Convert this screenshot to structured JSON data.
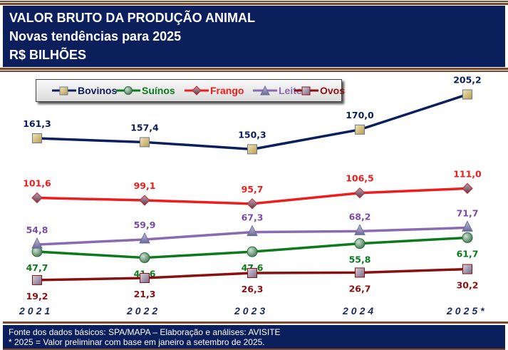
{
  "header": {
    "title": "VALOR BRUTO DA PRODUÇÃO ANIMAL",
    "subtitle": "Novas tendências para 2025",
    "unit": "R$ BILHÕES"
  },
  "footer": {
    "source": "Fonte dos dados básicos: SPA/MAPA – Elaboração e análises: AVISITE",
    "note": "* 2025 = Valor preliminar com base em janeiro a setembro de 2025."
  },
  "chart_data": {
    "type": "line",
    "title": "VALOR BRUTO DA PRODUÇÃO ANIMAL",
    "subtitle": "Novas tendências para 2025",
    "ylabel": "R$ BILHÕES",
    "xlabel": "",
    "categories": [
      "2021",
      "2022",
      "2023",
      "2024",
      "2025*"
    ],
    "ylim": [
      0,
      215
    ],
    "grid": false,
    "legend_position": "top-left",
    "series": [
      {
        "name": "Bovinos",
        "color": "#0b1f5c",
        "marker": "square",
        "marker_fill": "#d8c48a",
        "label_pos": "above",
        "labels": [
          "161,3",
          "157,4",
          "150,3",
          "170,0",
          "205,2"
        ],
        "values": [
          161.3,
          157.4,
          150.3,
          170.0,
          205.2
        ]
      },
      {
        "name": "Suínos",
        "color": "#0a7a1a",
        "marker": "circle",
        "marker_fill": "#7aa58a",
        "label_pos": "below",
        "labels": [
          "47,7",
          "41,6",
          "47,6",
          "55,8",
          "61,7"
        ],
        "values": [
          47.7,
          41.6,
          47.6,
          55.8,
          61.7
        ]
      },
      {
        "name": "Frango",
        "color": "#ee1c1c",
        "marker": "diamond",
        "marker_fill": "#8a6a7a",
        "label_pos": "above",
        "labels": [
          "101,6",
          "99,1",
          "95,7",
          "106,5",
          "111,0"
        ],
        "values": [
          101.6,
          99.1,
          95.7,
          106.5,
          111.0
        ]
      },
      {
        "name": "Leite",
        "color": "#8a6ab0",
        "marker": "triangle",
        "marker_fill": "#8a8ab0",
        "label_pos": "above",
        "labels": [
          "54,8",
          "59,9",
          "67,3",
          "68,2",
          "71,7"
        ],
        "values": [
          54.8,
          59.9,
          67.3,
          68.2,
          71.7
        ]
      },
      {
        "name": "Ovos",
        "color": "#8a1010",
        "marker": "square",
        "marker_fill": "#9a8aa0",
        "label_pos": "below",
        "labels": [
          "19,2",
          "21,3",
          "26,3",
          "26,7",
          "30,2"
        ],
        "values": [
          19.2,
          21.3,
          26.3,
          26.7,
          30.2
        ]
      }
    ]
  }
}
